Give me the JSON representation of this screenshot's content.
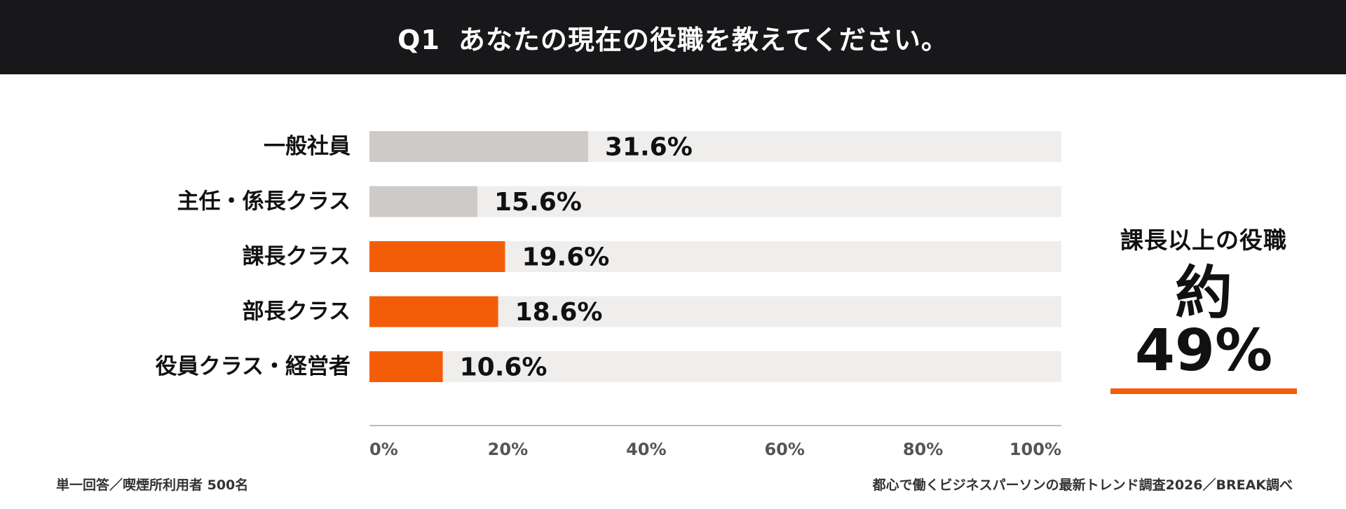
{
  "header": {
    "q": "Q1",
    "title": "あなたの現在の役職を教えてください。"
  },
  "chart_data": {
    "type": "bar",
    "orientation": "horizontal",
    "categories": [
      "一般社員",
      "主任・係長クラス",
      "課長クラス",
      "部長クラス",
      "役員クラス・経営者"
    ],
    "values": [
      31.6,
      15.6,
      19.6,
      18.6,
      10.6
    ],
    "value_labels": [
      "31.6%",
      "15.6%",
      "19.6%",
      "18.6%",
      "10.6%"
    ],
    "highlighted": [
      false,
      false,
      true,
      true,
      true
    ],
    "xlim": [
      0,
      100
    ],
    "xticks": [
      0,
      20,
      40,
      60,
      80,
      100
    ],
    "xtick_labels": [
      "0%",
      "20%",
      "40%",
      "60%",
      "80%",
      "100%"
    ],
    "grid": false,
    "legend": "none"
  },
  "callout": {
    "label": "課長以上の役職",
    "value": "約49%"
  },
  "notes": {
    "left": "単一回答／喫煙所利用者 500名",
    "right": "都心で働くビジネスパーソンの最新トレンド調査2026／BREAK調べ"
  },
  "colors": {
    "highlight": "#f45d08",
    "base_bar": "#cdcac7",
    "track": "#efeeed",
    "header_bg": "#18181a",
    "axis": "#bdbdbd"
  }
}
